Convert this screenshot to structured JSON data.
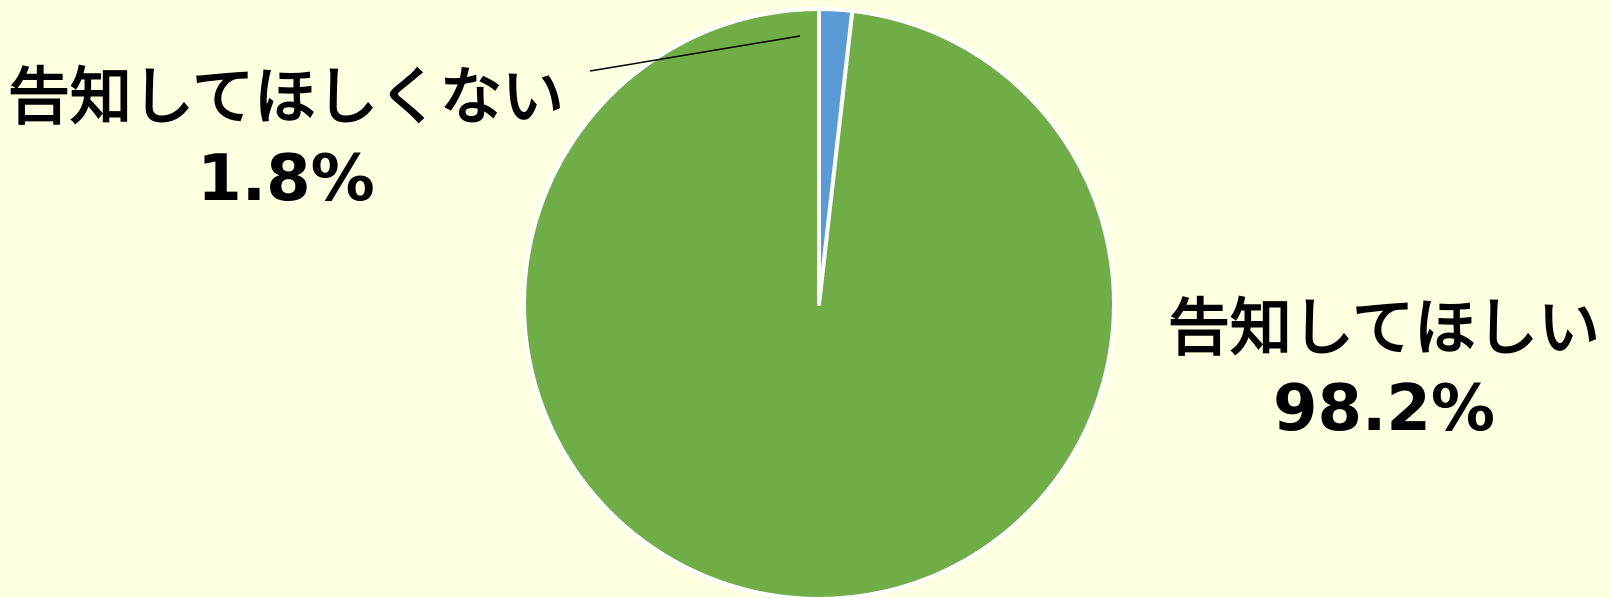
{
  "chart_data": {
    "type": "pie",
    "title": "",
    "start_angle_deg": 0,
    "direction": "counterclockwise",
    "slices": [
      {
        "label": "告知してほしい",
        "value": 98.2,
        "value_label": "98.2%",
        "color": "#70ad47"
      },
      {
        "label": "告知してほしくない",
        "value": 1.8,
        "value_label": "1.8%",
        "color": "#5b9bd5"
      }
    ],
    "legend": "none",
    "slice_border_color": "#ffffff",
    "leader_line_color": "#000000"
  }
}
